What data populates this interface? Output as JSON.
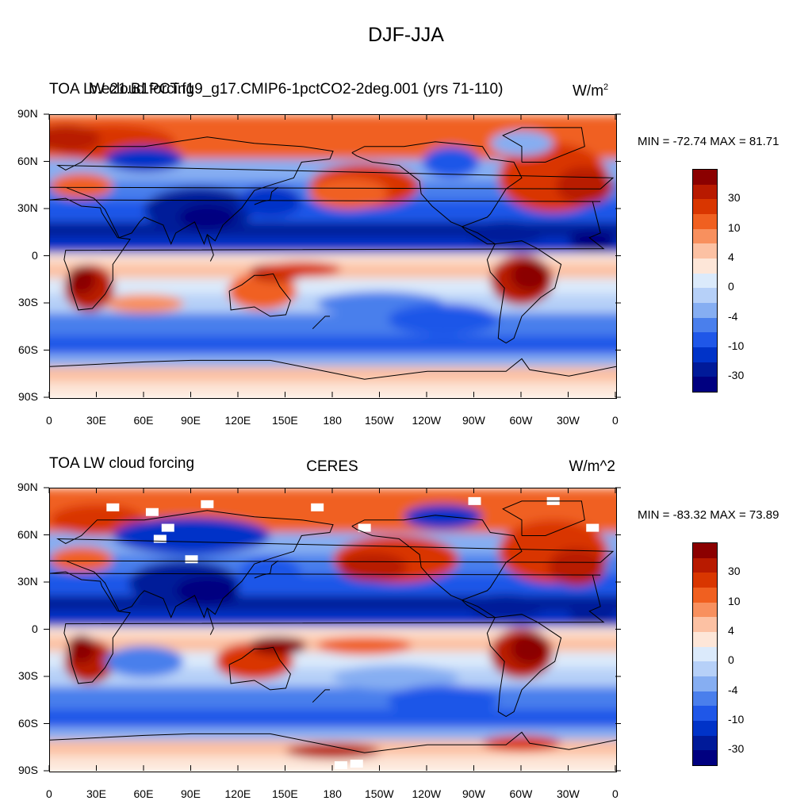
{
  "figure": {
    "title": "DJF-JJA",
    "x_tick_labels": [
      "0",
      "30E",
      "60E",
      "90E",
      "120E",
      "150E",
      "180",
      "150W",
      "120W",
      "90W",
      "60W",
      "30W",
      "0"
    ],
    "y_tick_labels": [
      "90N",
      "60N",
      "30N",
      "0",
      "30S",
      "60S",
      "90S"
    ],
    "colorbar_labels": [
      "30",
      "10",
      "4",
      "0",
      "-4",
      "-10",
      "-30"
    ],
    "colorbar_colors": [
      "#8b0000",
      "#b81a00",
      "#d93600",
      "#f06020",
      "#f8905e",
      "#fcc1a3",
      "#fde6d8",
      "#dbeafb",
      "#b6d0f8",
      "#86aef2",
      "#4a7fec",
      "#1f57e8",
      "#0033c8",
      "#001a99",
      "#000080"
    ]
  },
  "panels": [
    {
      "title_left": "TOA LW cloud forcing",
      "title_center": "b.e21.B1PCT.f19_g17.CMIP6-1pctCO2-2deg.001 (yrs 71-110)",
      "units": "W/m",
      "units_superscript": "2",
      "min_max": "MIN = -72.74 MAX =  81.71"
    },
    {
      "title_left": "TOA LW cloud forcing",
      "title_center": "CERES",
      "units": "W/m^2",
      "units_superscript": "",
      "min_max": "MIN = -83.32 MAX =  73.89"
    }
  ]
}
